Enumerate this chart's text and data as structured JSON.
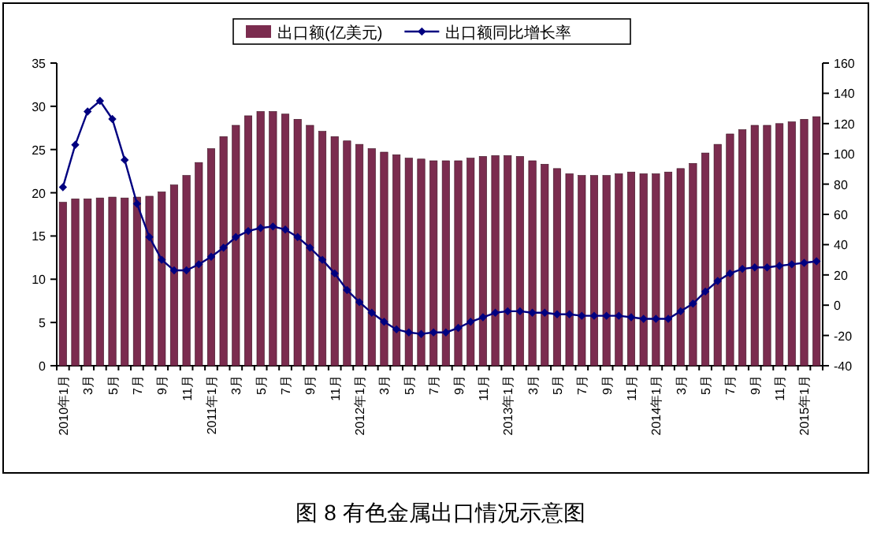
{
  "chart_data": {
    "type": "bar",
    "title": "图 8  有色金属出口情况示意图",
    "categories": [
      "2010年1月",
      null,
      "3月",
      null,
      "5月",
      null,
      "7月",
      null,
      "9月",
      null,
      "11月",
      null,
      "2011年1月",
      null,
      "3月",
      null,
      "5月",
      null,
      "7月",
      null,
      "9月",
      null,
      "11月",
      null,
      "2012年1月",
      null,
      "3月",
      null,
      "5月",
      null,
      "7月",
      null,
      "9月",
      null,
      "11月",
      null,
      "2013年1月",
      null,
      "3月",
      null,
      "5月",
      null,
      "7月",
      null,
      "9月",
      null,
      "11月",
      null,
      "2014年1月",
      null,
      "3月",
      null,
      "5月",
      null,
      "7月",
      null,
      "9月",
      null,
      "11月",
      null,
      "2015年1月",
      null
    ],
    "series": [
      {
        "name": "出口额(亿美元)",
        "color": "#7b2c4f",
        "values": [
          18.9,
          19.3,
          19.3,
          19.4,
          19.5,
          19.4,
          19.5,
          19.6,
          20.1,
          20.9,
          22.0,
          23.5,
          25.1,
          26.5,
          27.8,
          28.9,
          29.4,
          29.4,
          29.1,
          28.5,
          27.8,
          27.1,
          26.5,
          26.0,
          25.6,
          25.1,
          24.7,
          24.4,
          24.0,
          23.9,
          23.7,
          23.7,
          23.7,
          24.0,
          24.2,
          24.3,
          24.3,
          24.2,
          23.7,
          23.3,
          22.8,
          22.2,
          22.0,
          22.0,
          22.0,
          22.2,
          22.4,
          22.2,
          22.2,
          22.4,
          22.8,
          23.4,
          24.6,
          25.6,
          26.8,
          27.3,
          27.8,
          27.8,
          28.0,
          28.2,
          28.5,
          28.8
        ]
      },
      {
        "name": "出口额同比增长率",
        "type": "line",
        "axis": "y2",
        "color": "#000080",
        "values": [
          78,
          106,
          128,
          135,
          123,
          96,
          67,
          45,
          30,
          23,
          23,
          27,
          32,
          38,
          45,
          49,
          51,
          52,
          50,
          45,
          38,
          30,
          21,
          10,
          2,
          -5,
          -11,
          -16,
          -18,
          -19,
          -18,
          -18,
          -15,
          -11,
          -8,
          -5,
          -4,
          -4,
          -5,
          -5,
          -6,
          -6,
          -7,
          -7,
          -7,
          -7,
          -8,
          -9,
          -9,
          -9,
          -4,
          1,
          9,
          16,
          21,
          24,
          25,
          25,
          26,
          27,
          28,
          29
        ]
      }
    ],
    "ylim": [
      0,
      35
    ],
    "yticks": [
      0,
      5,
      10,
      15,
      20,
      25,
      30,
      35
    ],
    "y2lim": [
      -40,
      160
    ],
    "y2ticks": [
      -40,
      -20,
      0,
      20,
      40,
      60,
      80,
      100,
      120,
      140,
      160
    ],
    "legend": "top",
    "marker": "diamond",
    "grid": false
  }
}
